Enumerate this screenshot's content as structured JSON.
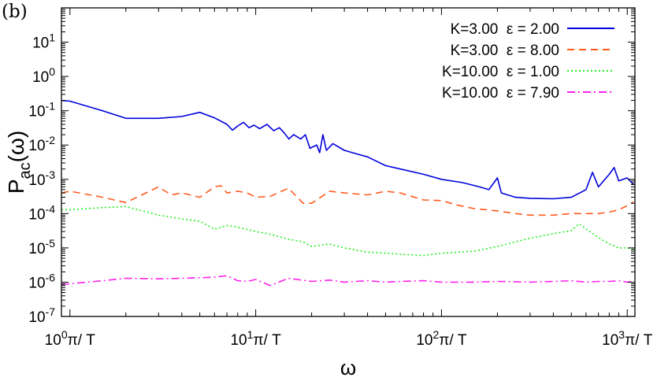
{
  "panel_label": "(b)",
  "colors": {
    "series": [
      "#0000dd",
      "#ff5a1e",
      "#22ee22",
      "#ff22ee"
    ],
    "axes": "#000000"
  },
  "chart_data": {
    "type": "line",
    "title": "",
    "xlabel": "ω",
    "ylabel": {
      "base": "P",
      "subscript": "ac",
      "suffix": "(ω)"
    },
    "x_scale": "log",
    "y_scale": "log",
    "xlim": [
      0.9,
      1100
    ],
    "ylim": [
      1e-07,
      100
    ],
    "x_ticks": [
      {
        "value": 1,
        "base": "10",
        "exp": "0",
        "suffix": "π/ T"
      },
      {
        "value": 10,
        "base": "10",
        "exp": "1",
        "suffix": "π/ T"
      },
      {
        "value": 100,
        "base": "10",
        "exp": "2",
        "suffix": "π/ T"
      },
      {
        "value": 1000,
        "base": "10",
        "exp": "3",
        "suffix": "π/ T"
      }
    ],
    "y_ticks": [
      {
        "value": 1e-07,
        "base": "10",
        "exp": "-7"
      },
      {
        "value": 1e-06,
        "base": "10",
        "exp": "-6"
      },
      {
        "value": 1e-05,
        "base": "10",
        "exp": "-5"
      },
      {
        "value": 0.0001,
        "base": "10",
        "exp": "-4"
      },
      {
        "value": 0.001,
        "base": "10",
        "exp": "-3"
      },
      {
        "value": 0.01,
        "base": "10",
        "exp": "-2"
      },
      {
        "value": 0.1,
        "base": "10",
        "exp": "-1"
      },
      {
        "value": 1,
        "base": "10",
        "exp": "0"
      },
      {
        "value": 10,
        "base": "10",
        "exp": "1"
      }
    ],
    "grid": false,
    "legend_position": "top-right",
    "series": [
      {
        "name": "K=3.00  ε = 2.00",
        "style": "solid",
        "points": [
          [
            0.9,
            0.2
          ],
          [
            1,
            0.19
          ],
          [
            1.5,
            0.1
          ],
          [
            2,
            0.06
          ],
          [
            3,
            0.06
          ],
          [
            4,
            0.068
          ],
          [
            5,
            0.09
          ],
          [
            6,
            0.062
          ],
          [
            7,
            0.04
          ],
          [
            7.5,
            0.027
          ],
          [
            8,
            0.036
          ],
          [
            8.6,
            0.046
          ],
          [
            9.2,
            0.032
          ],
          [
            9.8,
            0.038
          ],
          [
            10.5,
            0.03
          ],
          [
            11.5,
            0.04
          ],
          [
            12.5,
            0.026
          ],
          [
            13.4,
            0.032
          ],
          [
            14.3,
            0.022
          ],
          [
            15.1,
            0.015
          ],
          [
            16,
            0.02
          ],
          [
            17.5,
            0.015
          ],
          [
            18.5,
            0.02
          ],
          [
            19.6,
            0.008
          ],
          [
            21.3,
            0.01
          ],
          [
            22.1,
            0.006
          ],
          [
            23,
            0.02
          ],
          [
            24,
            0.007
          ],
          [
            26,
            0.011
          ],
          [
            30,
            0.007
          ],
          [
            35,
            0.0055
          ],
          [
            40,
            0.0045
          ],
          [
            50,
            0.0025
          ],
          [
            60,
            0.002
          ],
          [
            80,
            0.0014
          ],
          [
            100,
            0.001
          ],
          [
            130,
            0.0008
          ],
          [
            160,
            0.0006
          ],
          [
            180,
            0.0005
          ],
          [
            200,
            0.0011
          ],
          [
            210,
            0.0004
          ],
          [
            250,
            0.0003
          ],
          [
            300,
            0.00028
          ],
          [
            400,
            0.00027
          ],
          [
            500,
            0.0003
          ],
          [
            600,
            0.0005
          ],
          [
            650,
            0.0016
          ],
          [
            700,
            0.0006
          ],
          [
            800,
            0.0014
          ],
          [
            850,
            0.0022
          ],
          [
            900,
            0.0009
          ],
          [
            1000,
            0.0011
          ],
          [
            1080,
            0.0007
          ]
        ]
      },
      {
        "name": "K=3.00  ε = 8.00",
        "style": "dashed",
        "points": [
          [
            0.9,
            0.0004
          ],
          [
            1,
            0.00045
          ],
          [
            1.5,
            0.0003
          ],
          [
            2,
            0.00021
          ],
          [
            3,
            0.0006
          ],
          [
            3.5,
            0.00035
          ],
          [
            4,
            0.0004
          ],
          [
            5,
            0.0003
          ],
          [
            6,
            0.0006
          ],
          [
            6.5,
            0.00065
          ],
          [
            7,
            0.0004
          ],
          [
            8,
            0.00045
          ],
          [
            9,
            0.0004
          ],
          [
            10,
            0.0003
          ],
          [
            12,
            0.00032
          ],
          [
            15,
            0.00055
          ],
          [
            18,
            0.0002
          ],
          [
            20,
            0.0002
          ],
          [
            25,
            0.00045
          ],
          [
            30,
            0.0004
          ],
          [
            40,
            0.00035
          ],
          [
            50,
            0.00045
          ],
          [
            60,
            0.0004
          ],
          [
            80,
            0.00025
          ],
          [
            100,
            0.00024
          ],
          [
            120,
            0.00018
          ],
          [
            150,
            0.00014
          ],
          [
            200,
            0.00012
          ],
          [
            250,
            0.0001
          ],
          [
            300,
            9e-05
          ],
          [
            400,
            9e-05
          ],
          [
            500,
            0.0001
          ],
          [
            600,
            0.0001
          ],
          [
            700,
            0.0001
          ],
          [
            800,
            0.00011
          ],
          [
            900,
            0.00013
          ],
          [
            1000,
            0.00017
          ],
          [
            1080,
            0.00022
          ]
        ]
      },
      {
        "name": "K=10.00  ε = 1.00",
        "style": "dotted",
        "points": [
          [
            0.9,
            0.00013
          ],
          [
            1,
            0.00013
          ],
          [
            1.5,
            0.00015
          ],
          [
            2,
            0.00016
          ],
          [
            3,
            9e-05
          ],
          [
            4,
            7e-05
          ],
          [
            5,
            6e-05
          ],
          [
            6,
            3.5e-05
          ],
          [
            7,
            4.5e-05
          ],
          [
            8,
            4e-05
          ],
          [
            10,
            3e-05
          ],
          [
            12,
            2.5e-05
          ],
          [
            15,
            1.8e-05
          ],
          [
            18,
            1.5e-05
          ],
          [
            20,
            1.1e-05
          ],
          [
            25,
            1.3e-05
          ],
          [
            30,
            1e-05
          ],
          [
            40,
            7.5e-06
          ],
          [
            50,
            7e-06
          ],
          [
            60,
            6.5e-06
          ],
          [
            80,
            6e-06
          ],
          [
            100,
            7e-06
          ],
          [
            150,
            8e-06
          ],
          [
            200,
            1.1e-05
          ],
          [
            250,
            1.5e-05
          ],
          [
            300,
            1.9e-05
          ],
          [
            400,
            2.6e-05
          ],
          [
            500,
            3.2e-05
          ],
          [
            550,
            5e-05
          ],
          [
            600,
            3.6e-05
          ],
          [
            700,
            2e-05
          ],
          [
            800,
            1.3e-05
          ],
          [
            900,
            1e-05
          ],
          [
            1000,
            1e-05
          ],
          [
            1080,
            9e-06
          ]
        ]
      },
      {
        "name": "K=10.00  ε = 7.90",
        "style": "dashdot",
        "points": [
          [
            0.9,
            8.5e-07
          ],
          [
            1,
            9e-07
          ],
          [
            1.5,
            1.1e-06
          ],
          [
            2,
            1.3e-06
          ],
          [
            3,
            1.25e-06
          ],
          [
            4,
            1.3e-06
          ],
          [
            5,
            1.35e-06
          ],
          [
            6,
            1.4e-06
          ],
          [
            7,
            1.55e-06
          ],
          [
            8,
            1.1e-06
          ],
          [
            9,
            1.05e-06
          ],
          [
            10,
            1.2e-06
          ],
          [
            12,
            8e-07
          ],
          [
            15,
            1.3e-06
          ],
          [
            20,
            1.05e-06
          ],
          [
            25,
            1.15e-06
          ],
          [
            30,
            1e-06
          ],
          [
            40,
            1.1e-06
          ],
          [
            50,
            1e-06
          ],
          [
            60,
            1.05e-06
          ],
          [
            80,
            1.1e-06
          ],
          [
            100,
            1e-06
          ],
          [
            150,
            1e-06
          ],
          [
            200,
            1.05e-06
          ],
          [
            300,
            1e-06
          ],
          [
            400,
            1.05e-06
          ],
          [
            500,
            1.1e-06
          ],
          [
            600,
            1e-06
          ],
          [
            700,
            1.05e-06
          ],
          [
            800,
            1.05e-06
          ],
          [
            900,
            1.1e-06
          ],
          [
            1000,
            1e-06
          ],
          [
            1080,
            1.05e-06
          ]
        ]
      }
    ]
  }
}
